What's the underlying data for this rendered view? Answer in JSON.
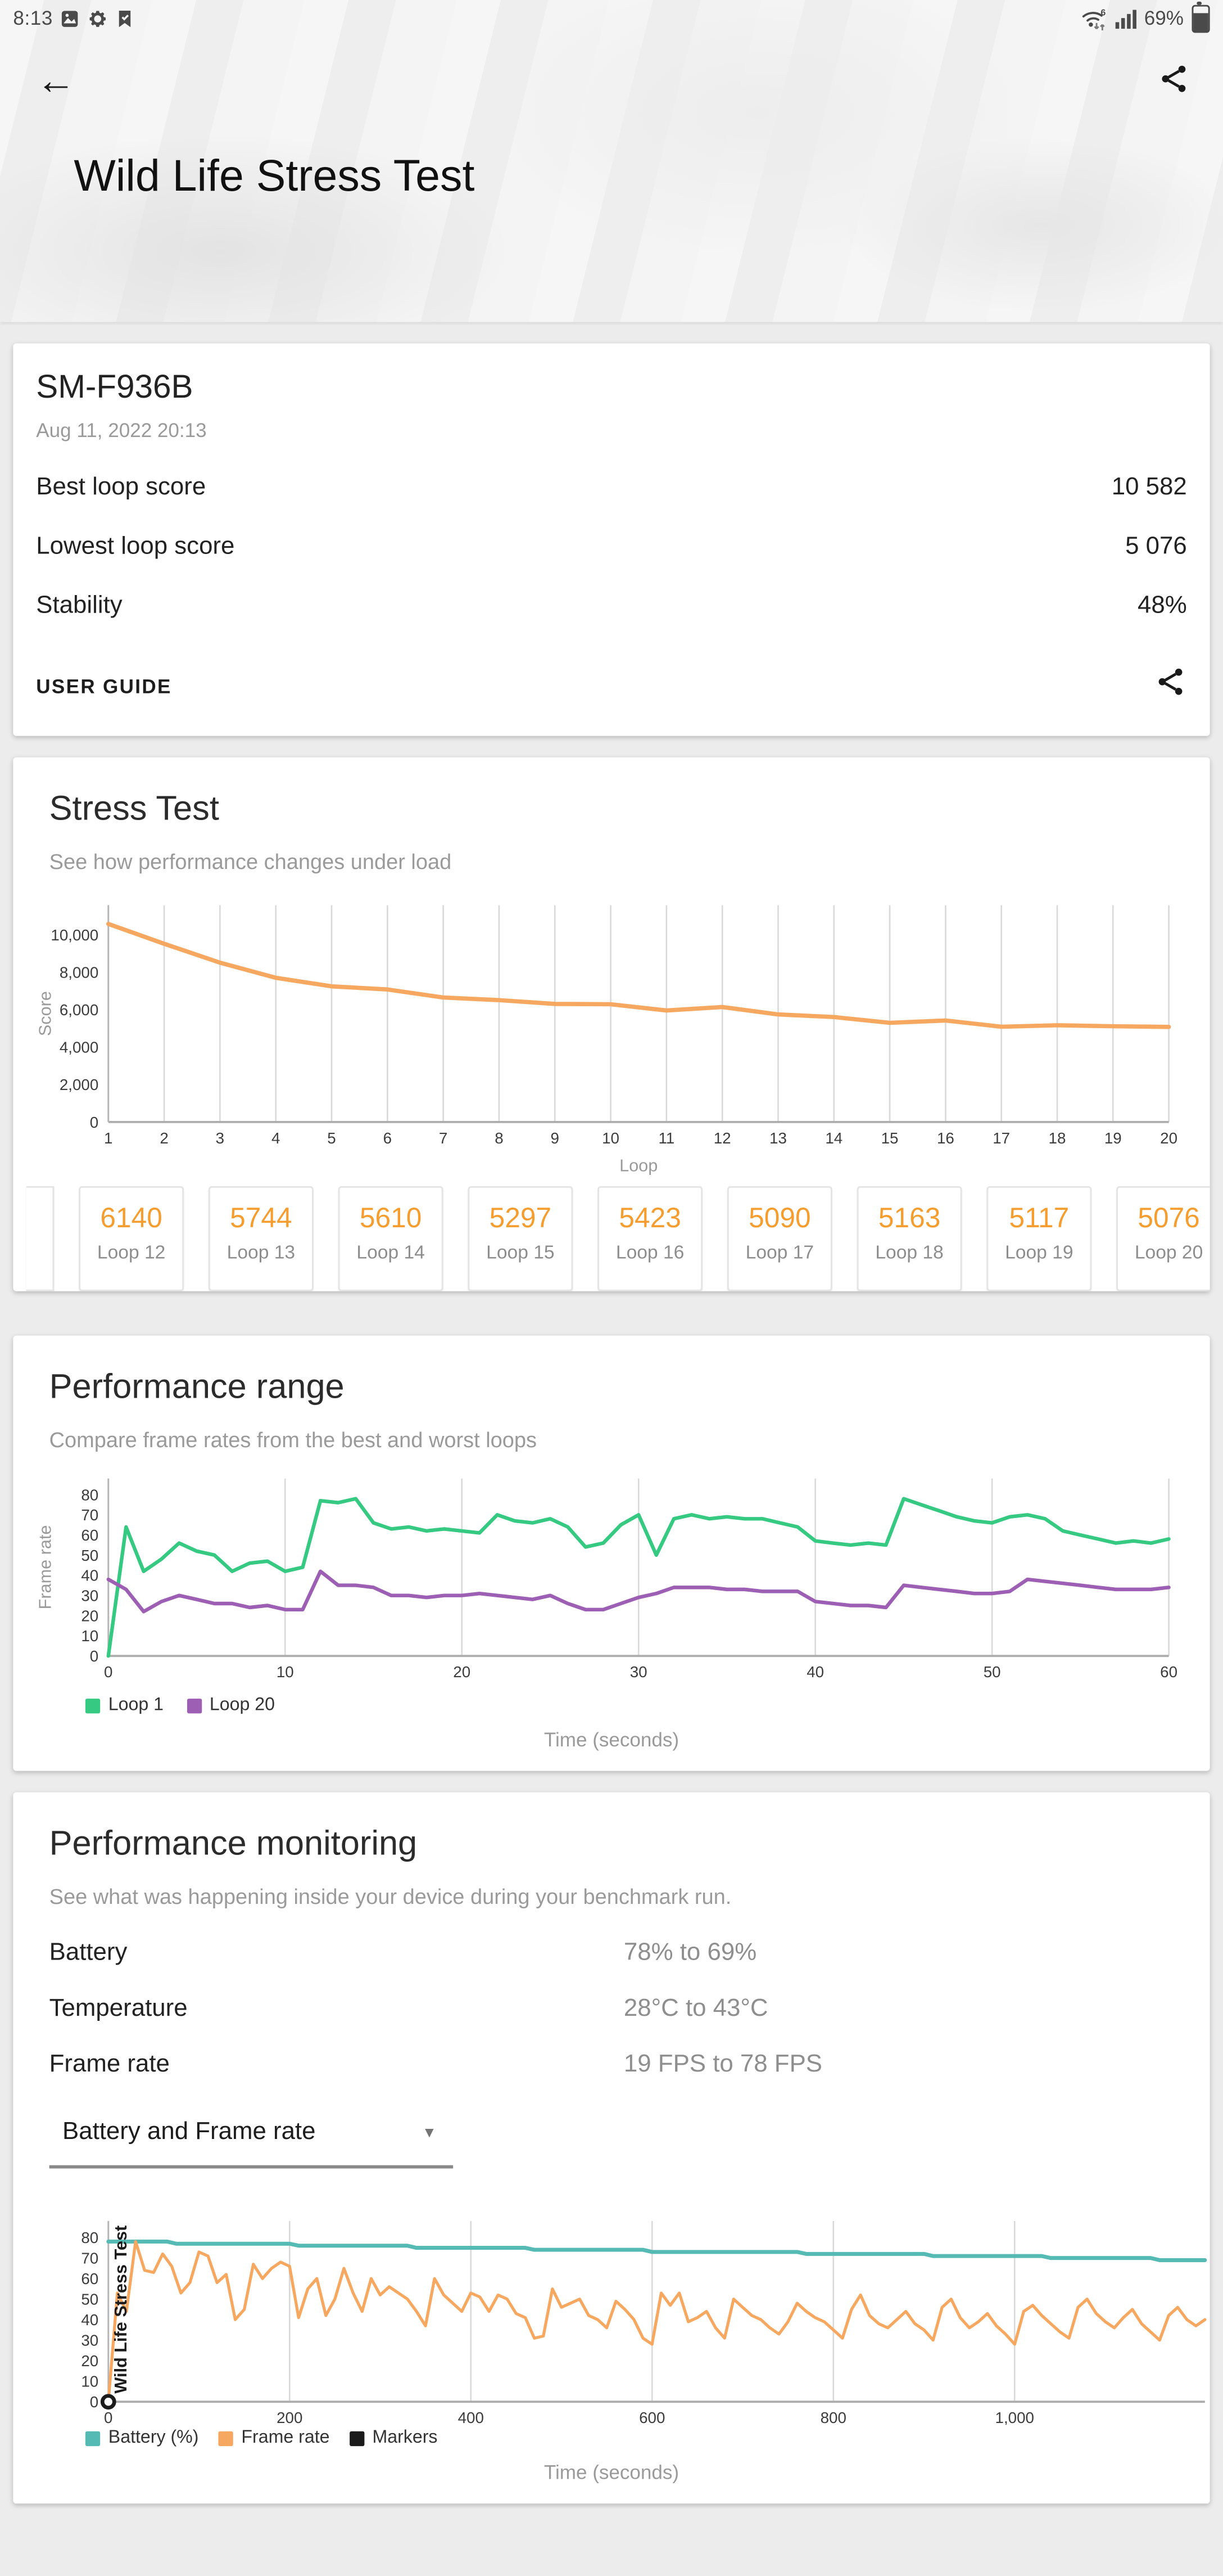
{
  "status_bar": {
    "time": "8:13",
    "battery": "69%",
    "left_icons": [
      "photo-icon",
      "settings-gear-icon",
      "flag-check-icon"
    ],
    "right_icons": [
      "wifi6-updown-icon",
      "signal-bars-icon",
      "battery-icon"
    ]
  },
  "header": {
    "title": "Wild Life Stress Test"
  },
  "result_card": {
    "device": "SM-F936B",
    "datetime": "Aug 11, 2022 20:13",
    "rows": [
      {
        "label": "Best loop score",
        "value": "10 582"
      },
      {
        "label": "Lowest loop score",
        "value": "5 076"
      },
      {
        "label": "Stability",
        "value": "48%"
      }
    ],
    "user_guide_label": "USER GUIDE"
  },
  "stress_test": {
    "title": "Stress Test",
    "subtitle": "See how performance changes under load",
    "ylabel": "Score",
    "xlabel": "Loop",
    "loop_chips": [
      {
        "score": "6140",
        "label": "Loop 12"
      },
      {
        "score": "5744",
        "label": "Loop 13"
      },
      {
        "score": "5610",
        "label": "Loop 14"
      },
      {
        "score": "5297",
        "label": "Loop 15"
      },
      {
        "score": "5423",
        "label": "Loop 16"
      },
      {
        "score": "5090",
        "label": "Loop 17"
      },
      {
        "score": "5163",
        "label": "Loop 18"
      },
      {
        "score": "5117",
        "label": "Loop 19"
      },
      {
        "score": "5076",
        "label": "Loop 20"
      }
    ]
  },
  "performance_range": {
    "title": "Performance range",
    "subtitle": "Compare frame rates from the best and worst loops",
    "ylabel": "Frame rate",
    "xlabel": "Time (seconds)",
    "legend": [
      {
        "label": "Loop 1",
        "color": "#36c982"
      },
      {
        "label": "Loop 20",
        "color": "#9d5fb4"
      }
    ]
  },
  "performance_monitoring": {
    "title": "Performance monitoring",
    "subtitle": "See what was happening inside your device during your benchmark run.",
    "rows": [
      {
        "label": "Battery",
        "value": "78% to 69%"
      },
      {
        "label": "Temperature",
        "value": "28°C to 43°C"
      },
      {
        "label": "Frame rate",
        "value": "19 FPS to 78 FPS"
      }
    ],
    "dropdown_value": "Battery and Frame rate",
    "legend": [
      {
        "label": "Battery (%)",
        "color": "#55b9b4"
      },
      {
        "label": "Frame rate",
        "color": "#f6a861"
      },
      {
        "label": "Markers",
        "color": "#1b1b1b"
      }
    ],
    "xlabel": "Time (seconds)"
  },
  "chart_data": [
    {
      "id": "stress-test-chart",
      "type": "line",
      "title": "Stress Test",
      "xlabel": "Loop",
      "ylabel": "Score",
      "xlim": [
        1,
        20
      ],
      "ylim": [
        0,
        11580
      ],
      "xticks": [
        1,
        2,
        3,
        4,
        5,
        6,
        7,
        8,
        9,
        10,
        11,
        12,
        13,
        14,
        15,
        16,
        17,
        18,
        19,
        20
      ],
      "xtick_labels": [
        "1",
        "2",
        "3",
        "4",
        "5",
        "6",
        "7",
        "8",
        "9",
        "10",
        "11",
        "12",
        "13",
        "14",
        "15",
        "16",
        "17",
        "18",
        "19",
        "20"
      ],
      "yticks": [
        0,
        2000,
        4000,
        6000,
        8000,
        10000
      ],
      "ytick_labels": [
        "0",
        "2,000",
        "4,000",
        "6,000",
        "8,000",
        "10,000"
      ],
      "grid": "vertical",
      "legend_position": "none",
      "series": [
        {
          "name": "Loop score",
          "color": "#f6a861",
          "width": 2.6,
          "x_start": 1,
          "x_step": 1,
          "values": [
            10582,
            9520,
            8510,
            7700,
            7250,
            7080,
            6650,
            6510,
            6310,
            6290,
            5960,
            6140,
            5744,
            5610,
            5297,
            5423,
            5090,
            5163,
            5117,
            5076
          ]
        }
      ]
    },
    {
      "id": "performance-range-chart",
      "type": "line",
      "title": "Performance range",
      "xlabel": "Time (seconds)",
      "ylabel": "Frame rate",
      "xlim": [
        0,
        60
      ],
      "ylim": [
        0,
        88
      ],
      "xticks": [
        0,
        10,
        20,
        30,
        40,
        50,
        60
      ],
      "xtick_labels": [
        "0",
        "10",
        "20",
        "30",
        "40",
        "50",
        "60"
      ],
      "yticks": [
        0,
        10,
        20,
        30,
        40,
        50,
        60,
        70,
        80
      ],
      "ytick_labels": [
        "0",
        "10",
        "20",
        "30",
        "40",
        "50",
        "60",
        "70",
        "80"
      ],
      "grid": "vertical",
      "legend_position": "bottom-left",
      "series": [
        {
          "name": "Loop 1",
          "color": "#36c982",
          "width": 2.2,
          "x_start": 0,
          "x_step": 1,
          "values": [
            0,
            64,
            42,
            48,
            56,
            52,
            50,
            42,
            46,
            47,
            42,
            44,
            77,
            76,
            78,
            66,
            63,
            64,
            62,
            63,
            62,
            61,
            70,
            67,
            66,
            68,
            64,
            54,
            56,
            65,
            70,
            50,
            68,
            70,
            68,
            69,
            68,
            68,
            66,
            64,
            57,
            56,
            55,
            56,
            55,
            78,
            75,
            72,
            69,
            67,
            66,
            69,
            70,
            68,
            62,
            60,
            58,
            56,
            57,
            56,
            58
          ]
        },
        {
          "name": "Loop 20",
          "color": "#9d5fb4",
          "width": 2.2,
          "x_start": 0,
          "x_step": 1,
          "values": [
            38,
            33,
            22,
            27,
            30,
            28,
            26,
            26,
            24,
            25,
            23,
            23,
            42,
            35,
            35,
            34,
            30,
            30,
            29,
            30,
            30,
            31,
            30,
            29,
            28,
            30,
            26,
            23,
            23,
            26,
            29,
            31,
            34,
            34,
            34,
            33,
            33,
            32,
            32,
            32,
            27,
            26,
            25,
            25,
            24,
            35,
            34,
            33,
            32,
            31,
            31,
            32,
            38,
            37,
            36,
            35,
            34,
            33,
            33,
            33,
            34
          ]
        }
      ]
    },
    {
      "id": "performance-monitoring-chart",
      "type": "line",
      "title": "Performance monitoring",
      "xlabel": "Time (seconds)",
      "ylabel": "",
      "xlim": [
        0,
        1210
      ],
      "ylim": [
        0,
        88
      ],
      "xticks": [
        0,
        200,
        400,
        600,
        800,
        1000
      ],
      "xtick_labels": [
        "0",
        "200",
        "400",
        "600",
        "800",
        "1,000"
      ],
      "yticks": [
        0,
        10,
        20,
        30,
        40,
        50,
        60,
        70,
        80
      ],
      "ytick_labels": [
        "0",
        "10",
        "20",
        "30",
        "40",
        "50",
        "60",
        "70",
        "80"
      ],
      "grid": "vertical",
      "legend_position": "bottom-left",
      "marker": {
        "x": 0,
        "y": 0,
        "label": "Wild Life Stress Test",
        "color": "#1b1b1b"
      },
      "series": [
        {
          "name": "Battery (%)",
          "color": "#55b9b4",
          "width": 2.4,
          "points": [
            [
              0,
              78
            ],
            [
              65,
              78
            ],
            [
              75,
              77
            ],
            [
              200,
              77
            ],
            [
              210,
              76
            ],
            [
              330,
              76
            ],
            [
              340,
              75
            ],
            [
              460,
              75
            ],
            [
              470,
              74
            ],
            [
              590,
              74
            ],
            [
              600,
              73
            ],
            [
              760,
              73
            ],
            [
              770,
              72
            ],
            [
              900,
              72
            ],
            [
              910,
              71
            ],
            [
              1030,
              71
            ],
            [
              1040,
              70
            ],
            [
              1150,
              70
            ],
            [
              1160,
              69
            ],
            [
              1210,
              69
            ]
          ]
        },
        {
          "name": "Frame rate",
          "color": "#f6a861",
          "width": 1.8,
          "x_start": 0,
          "x_step": 10,
          "values": [
            0,
            53,
            44,
            78,
            64,
            63,
            72,
            66,
            53,
            58,
            73,
            71,
            58,
            62,
            40,
            45,
            67,
            60,
            65,
            68,
            66,
            41,
            55,
            60,
            42,
            50,
            65,
            53,
            44,
            60,
            52,
            56,
            53,
            50,
            44,
            37,
            60,
            52,
            48,
            44,
            53,
            51,
            44,
            52,
            50,
            43,
            41,
            31,
            32,
            55,
            46,
            48,
            50,
            42,
            40,
            36,
            49,
            45,
            40,
            31,
            28,
            53,
            47,
            53,
            39,
            41,
            44,
            36,
            31,
            50,
            46,
            42,
            40,
            36,
            33,
            39,
            48,
            44,
            41,
            39,
            35,
            31,
            45,
            52,
            42,
            38,
            36,
            40,
            44,
            38,
            35,
            30,
            46,
            50,
            41,
            36,
            39,
            43,
            37,
            33,
            28,
            44,
            47,
            42,
            38,
            34,
            31,
            46,
            50,
            43,
            39,
            36,
            41,
            45,
            38,
            34,
            30,
            42,
            46,
            40,
            37,
            40
          ]
        }
      ]
    }
  ]
}
